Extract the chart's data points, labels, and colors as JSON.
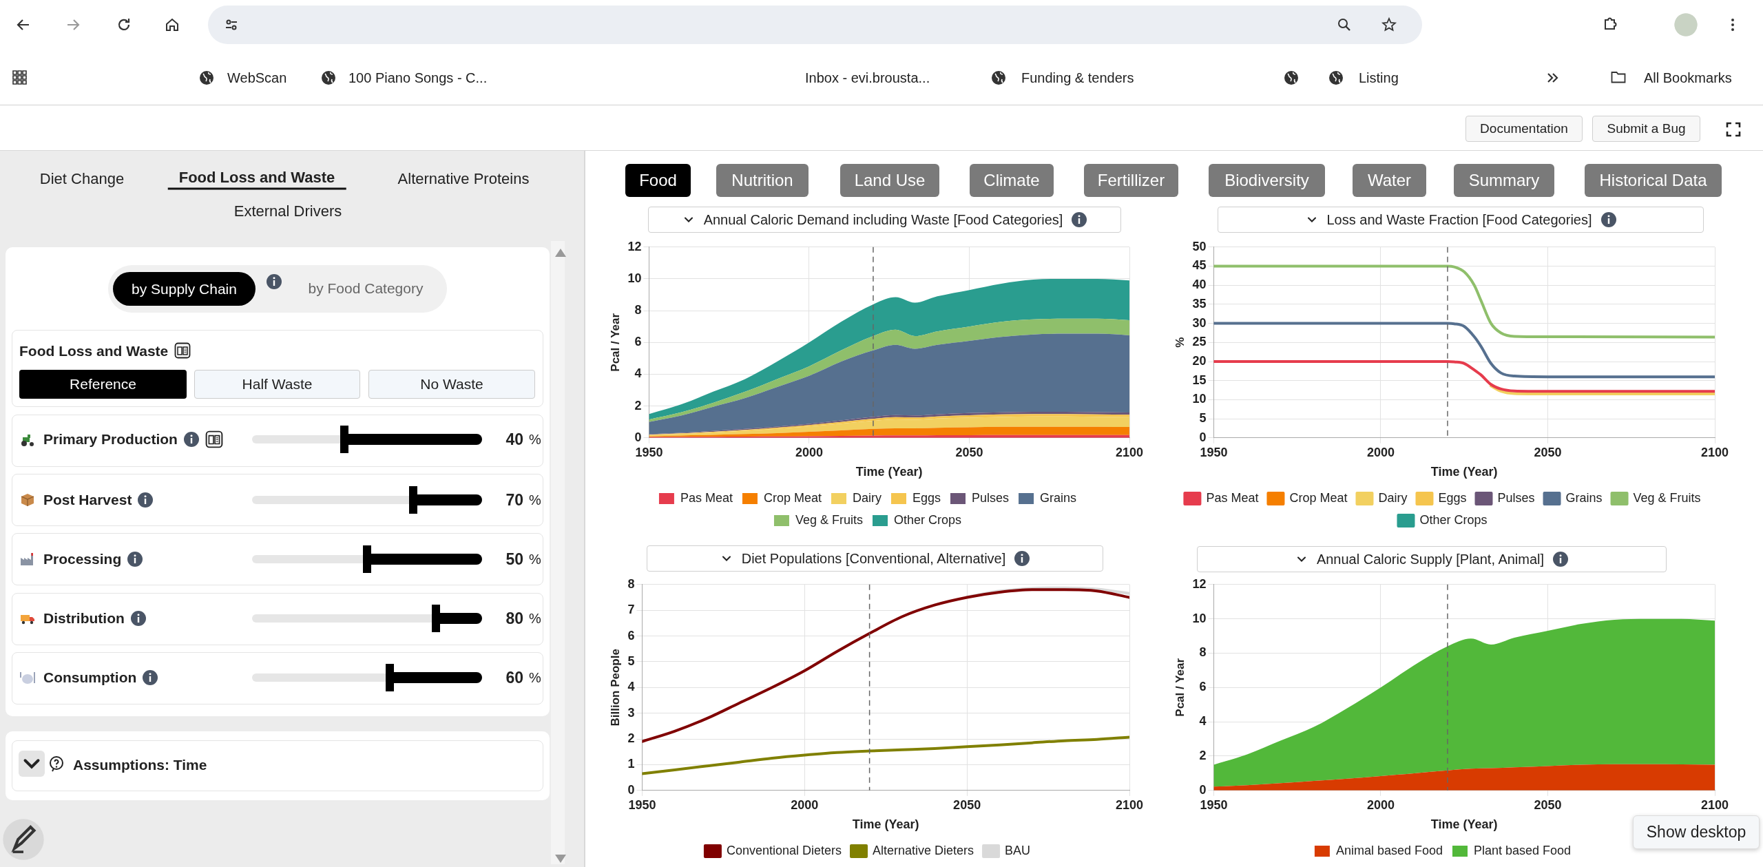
{
  "chart_data": [
    {
      "type": "other",
      "annotations": [
        "WebScan",
        "100 Piano Songs - C...",
        "Inbox - evi.brousta...",
        "Funding & tenders",
        "Listing",
        "All Bookmarks",
        "Documentation",
        "Submit a Bug",
        "Diet Change",
        "Food Loss and Waste",
        "Alternative Proteins",
        "External Drivers",
        "by Supply Chain",
        "by Food Category",
        "Food Loss and Waste",
        "Reference",
        "Half Waste",
        "No Waste",
        "Primary Production",
        "40",
        "%",
        "Post Harvest",
        "70",
        "%",
        "Processing",
        "50",
        "%",
        "Distribution",
        "80",
        "%",
        "Consumption",
        "60",
        "%",
        "Assumptions: Time",
        "Food",
        "Nutrition",
        "Land Use",
        "Climate",
        "Fertillizer",
        "Biodiversity",
        "Water",
        "Summary",
        "Historical Data",
        "Show desktop"
      ]
    },
    {
      "type": "area",
      "title": "Annual Caloric Demand including Waste [Food Categories]",
      "xlabel": "Time (Year)",
      "ylabel": "Pcal / Year",
      "stacked": true,
      "x": [
        1950,
        1960,
        1970,
        1980,
        1990,
        2000,
        2010,
        2020,
        2027,
        2033,
        2040,
        2050,
        2060,
        2070,
        2080,
        2090,
        2100
      ],
      "series": [
        {
          "name": "Pas Meat",
          "color": "#e63c4d",
          "values": [
            0.05,
            0.06,
            0.07,
            0.08,
            0.09,
            0.1,
            0.12,
            0.14,
            0.15,
            0.15,
            0.16,
            0.17,
            0.18,
            0.18,
            0.18,
            0.18,
            0.18
          ]
        },
        {
          "name": "Crop Meat",
          "color": "#f57f00",
          "values": [
            0.05,
            0.08,
            0.12,
            0.16,
            0.21,
            0.28,
            0.35,
            0.42,
            0.45,
            0.45,
            0.47,
            0.49,
            0.51,
            0.52,
            0.52,
            0.52,
            0.5
          ]
        },
        {
          "name": "Dairy",
          "color": "#f2d060",
          "values": [
            0.08,
            0.11,
            0.15,
            0.21,
            0.27,
            0.34,
            0.42,
            0.51,
            0.56,
            0.54,
            0.58,
            0.61,
            0.62,
            0.64,
            0.64,
            0.62,
            0.62
          ]
        },
        {
          "name": "Eggs",
          "color": "#f5c54e",
          "values": [
            0.02,
            0.03,
            0.04,
            0.05,
            0.07,
            0.08,
            0.11,
            0.13,
            0.14,
            0.14,
            0.14,
            0.15,
            0.16,
            0.16,
            0.16,
            0.16,
            0.15
          ]
        },
        {
          "name": "Pulses",
          "color": "#6b5677",
          "values": [
            0.03,
            0.04,
            0.05,
            0.06,
            0.07,
            0.08,
            0.1,
            0.12,
            0.13,
            0.13,
            0.13,
            0.14,
            0.14,
            0.14,
            0.14,
            0.14,
            0.14
          ]
        },
        {
          "name": "Grains",
          "color": "#56708f",
          "values": [
            0.77,
            1.08,
            1.52,
            1.94,
            2.49,
            3.02,
            3.7,
            4.18,
            4.42,
            4.19,
            4.37,
            4.54,
            4.74,
            4.86,
            4.91,
            4.93,
            4.86
          ]
        },
        {
          "name": "Veg & Fruits",
          "color": "#8fbf6b",
          "values": [
            0.15,
            0.2,
            0.25,
            0.4,
            0.5,
            0.6,
            0.7,
            0.9,
            0.95,
            0.8,
            0.85,
            0.9,
            0.95,
            0.95,
            0.95,
            0.95,
            0.95
          ]
        },
        {
          "name": "Other Crops",
          "color": "#2a9d8f",
          "values": [
            0.35,
            0.5,
            0.7,
            0.8,
            1.1,
            1.5,
            1.8,
            2.0,
            2.05,
            2.1,
            2.2,
            2.3,
            2.4,
            2.5,
            2.5,
            2.5,
            2.5
          ]
        }
      ],
      "xlim": [
        1950,
        2100
      ],
      "xticks": [
        1950,
        2000,
        2050,
        2100
      ],
      "ylim": [
        0,
        12
      ],
      "yticks": [
        0,
        2,
        4,
        6,
        8,
        10,
        12
      ],
      "grid": true,
      "legend": "bottom",
      "ref_lines": [
        {
          "axis": "x",
          "value": 2020,
          "color": "#666666",
          "line_style": "dashed"
        }
      ]
    },
    {
      "type": "line",
      "title": "Loss and Waste Fraction [Food Categories]",
      "xlabel": "Time (Year)",
      "ylabel": "%",
      "marker": "none",
      "x": [
        1950,
        2000,
        2020,
        2022,
        2025,
        2028,
        2030,
        2033,
        2036,
        2040,
        2050,
        2100
      ],
      "series": [
        {
          "name": "Pas Meat",
          "color": "#e63c4d",
          "values": [
            20,
            20,
            20,
            19.9,
            19.5,
            17.8,
            16.5,
            14,
            12.8,
            12.3,
            12.2,
            12.2
          ]
        },
        {
          "name": "Crop Meat",
          "color": "#f57f00",
          "values": [
            null,
            null,
            null,
            null,
            null,
            null,
            null,
            null,
            null,
            null,
            null,
            null
          ]
        },
        {
          "name": "Dairy",
          "color": "#f2d060",
          "values": [
            null,
            null,
            null,
            null,
            null,
            null,
            null,
            13.6,
            12.2,
            11.6,
            11.5,
            11.5
          ]
        },
        {
          "name": "Eggs",
          "color": "#f5c54e",
          "values": [
            null,
            null,
            null,
            null,
            null,
            null,
            null,
            null,
            null,
            null,
            null,
            null
          ]
        },
        {
          "name": "Pulses",
          "color": "#6b5677",
          "values": [
            null,
            null,
            null,
            null,
            null,
            null,
            null,
            null,
            null,
            null,
            null,
            null
          ]
        },
        {
          "name": "Grains",
          "color": "#56708f",
          "values": [
            30,
            30,
            30,
            29.9,
            29.2,
            26.5,
            24,
            19.5,
            17,
            16.2,
            16,
            16
          ]
        },
        {
          "name": "Veg & Fruits",
          "color": "#8fbf6b",
          "values": [
            45,
            45,
            45,
            44.8,
            43.5,
            40,
            36,
            30,
            27.5,
            26.6,
            26.5,
            26.4
          ]
        },
        {
          "name": "Other Crops",
          "color": "#2a9d8f",
          "values": [
            null,
            null,
            null,
            null,
            null,
            null,
            null,
            null,
            null,
            null,
            null,
            null
          ]
        }
      ],
      "xlim": [
        1950,
        2100
      ],
      "xticks": [
        1950,
        2000,
        2050,
        2100
      ],
      "ylim": [
        0,
        50
      ],
      "yticks": [
        0,
        5,
        10,
        15,
        20,
        25,
        30,
        35,
        40,
        45,
        50
      ],
      "grid": true,
      "legend": "bottom",
      "ref_lines": [
        {
          "axis": "x",
          "value": 2020,
          "color": "#666666",
          "line_style": "dashed"
        }
      ]
    },
    {
      "type": "line",
      "title": "Diet Populations [Conventional, Alternative]",
      "xlabel": "Time (Year)",
      "ylabel": "Billion People",
      "marker": "none",
      "x": [
        1950,
        1960,
        1970,
        1980,
        1990,
        2000,
        2010,
        2020,
        2030,
        2040,
        2050,
        2060,
        2070,
        2080,
        2090,
        2100
      ],
      "series": [
        {
          "name": "Conventional Dieters",
          "color": "#800000",
          "values": [
            1.9,
            2.3,
            2.8,
            3.4,
            4.0,
            4.65,
            5.4,
            6.1,
            6.75,
            7.2,
            7.5,
            7.7,
            7.8,
            7.8,
            7.75,
            7.5
          ]
        },
        {
          "name": "Alternative Dieters",
          "color": "#808000",
          "values": [
            0.65,
            0.8,
            0.95,
            1.1,
            1.25,
            1.37,
            1.47,
            1.53,
            1.58,
            1.63,
            1.7,
            1.77,
            1.85,
            1.93,
            1.98,
            2.07
          ]
        },
        {
          "name": "BAU",
          "color": "#d9d9d9",
          "x": [
            2050,
            2060,
            2070,
            2080,
            2090,
            2100
          ],
          "values": [
            7.52,
            7.75,
            7.85,
            7.87,
            7.82,
            7.65
          ]
        }
      ],
      "xlim": [
        1950,
        2100
      ],
      "xticks": [
        1950,
        2000,
        2050,
        2100
      ],
      "ylim": [
        0,
        8
      ],
      "yticks": [
        0,
        1,
        2,
        3,
        4,
        5,
        6,
        7,
        8
      ],
      "grid": true,
      "legend": "bottom",
      "ref_lines": [
        {
          "axis": "x",
          "value": 2020,
          "color": "#666666",
          "line_style": "dashed"
        }
      ]
    },
    {
      "type": "area",
      "title": "Annual Caloric Supply [Plant, Animal]",
      "xlabel": "Time (Year)",
      "ylabel": "Pcal / Year",
      "stacked": true,
      "x": [
        1950,
        1960,
        1970,
        1980,
        1990,
        2000,
        2010,
        2020,
        2027,
        2033,
        2040,
        2050,
        2060,
        2070,
        2080,
        2090,
        2100
      ],
      "series": [
        {
          "name": "Animal based Food",
          "color": "#d83b01",
          "values": [
            0.22,
            0.3,
            0.42,
            0.55,
            0.68,
            0.83,
            1.0,
            1.17,
            1.27,
            1.3,
            1.35,
            1.42,
            1.5,
            1.53,
            1.53,
            1.52,
            1.5
          ]
        },
        {
          "name": "Plant based Food",
          "color": "#52b83a",
          "values": [
            1.28,
            1.8,
            2.48,
            3.15,
            4.12,
            5.17,
            6.3,
            7.23,
            7.58,
            7.2,
            7.55,
            7.88,
            8.2,
            8.42,
            8.47,
            8.48,
            8.4
          ]
        }
      ],
      "xlim": [
        1950,
        2100
      ],
      "xticks": [
        1950,
        2000,
        2050,
        2100
      ],
      "ylim": [
        0,
        12
      ],
      "yticks": [
        0,
        2,
        4,
        6,
        8,
        10,
        12
      ],
      "grid": true,
      "legend": "bottom",
      "ref_lines": [
        {
          "axis": "x",
          "value": 2020,
          "color": "#666666",
          "line_style": "dashed"
        }
      ]
    }
  ]
}
